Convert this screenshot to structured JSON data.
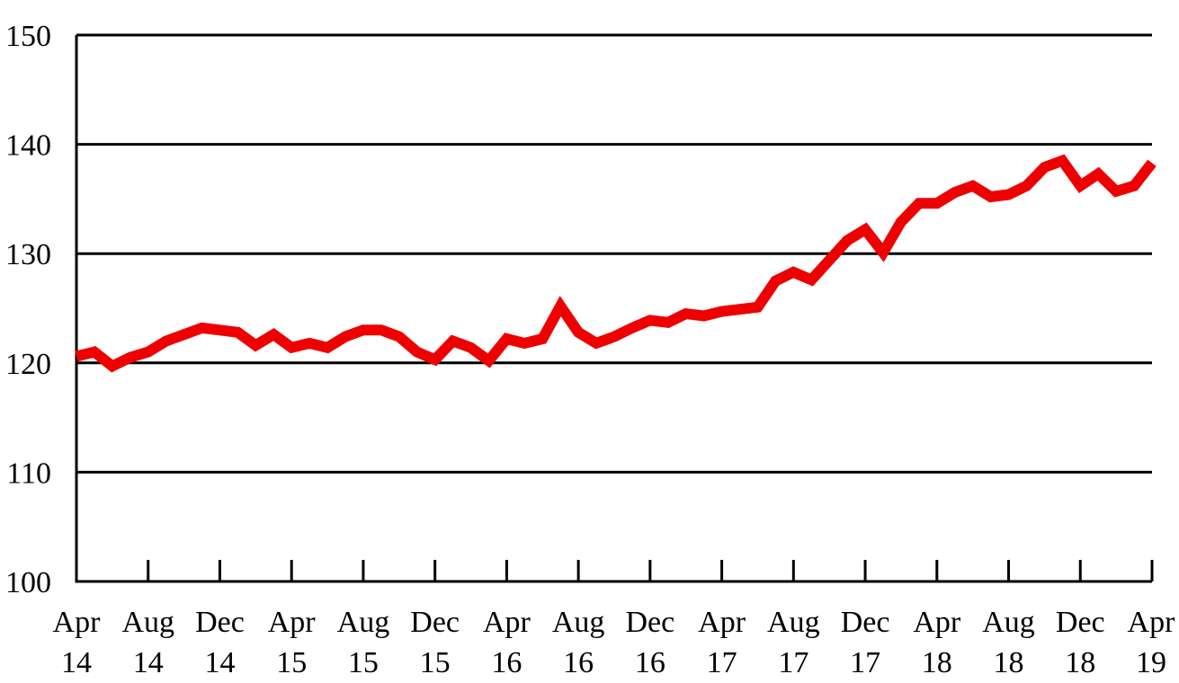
{
  "chart_data": {
    "type": "line",
    "title": "",
    "xlabel": "",
    "ylabel": "",
    "ylim": [
      100,
      150
    ],
    "yticks": [
      100,
      110,
      120,
      130,
      140,
      150
    ],
    "grid": "horizontal",
    "x_tick_labels": [
      {
        "month": "Apr",
        "year": "14"
      },
      {
        "month": "Aug",
        "year": "14"
      },
      {
        "month": "Dec",
        "year": "14"
      },
      {
        "month": "Apr",
        "year": "15"
      },
      {
        "month": "Aug",
        "year": "15"
      },
      {
        "month": "Dec",
        "year": "15"
      },
      {
        "month": "Apr",
        "year": "16"
      },
      {
        "month": "Aug",
        "year": "16"
      },
      {
        "month": "Dec",
        "year": "16"
      },
      {
        "month": "Apr",
        "year": "17"
      },
      {
        "month": "Aug",
        "year": "17"
      },
      {
        "month": "Dec",
        "year": "17"
      },
      {
        "month": "Apr",
        "year": "18"
      },
      {
        "month": "Aug",
        "year": "18"
      },
      {
        "month": "Dec",
        "year": "18"
      },
      {
        "month": "Apr",
        "year": "19"
      }
    ],
    "series": [
      {
        "color": "#ee0000",
        "x_start": "Apr 2014",
        "x_end": "Apr 2019",
        "frequency": "monthly",
        "values": [
          120.6,
          121.0,
          119.7,
          120.5,
          121.0,
          122.0,
          122.6,
          123.2,
          123.0,
          122.8,
          121.6,
          122.6,
          121.4,
          121.8,
          121.4,
          122.4,
          123.0,
          123.0,
          122.4,
          121.0,
          120.3,
          122.0,
          121.4,
          120.2,
          122.2,
          121.8,
          122.2,
          125.2,
          122.8,
          121.8,
          122.4,
          123.2,
          123.9,
          123.7,
          124.5,
          124.3,
          124.7,
          124.9,
          125.1,
          127.5,
          128.3,
          127.6,
          129.4,
          131.2,
          132.2,
          130.1,
          132.9,
          134.6,
          134.6,
          135.6,
          136.2,
          135.2,
          135.4,
          136.2,
          137.9,
          138.5,
          136.2,
          137.3,
          135.7,
          136.2,
          138.3
        ]
      }
    ]
  }
}
